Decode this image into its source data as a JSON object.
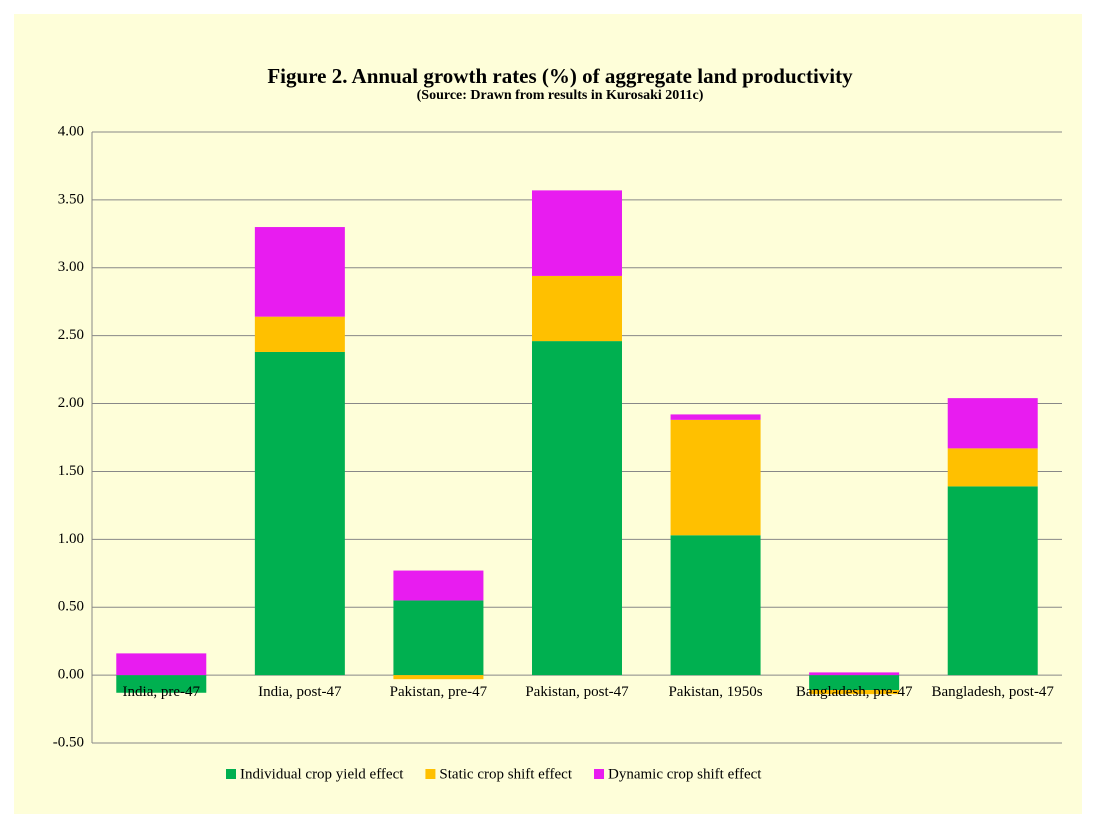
{
  "chart_data": {
    "type": "stacked-bar",
    "title": "Figure 2. Annual growth rates (%) of aggregate land productivity",
    "subtitle": "(Source: Drawn from results in Kurosaki 2011c)",
    "categories": [
      "India, pre-47",
      "India, post-47",
      "Pakistan, pre-47",
      "Pakistan, post-47",
      "Pakistan, 1950s",
      "Bangladesh, pre-47",
      "Bangladesh, post-47"
    ],
    "series": [
      {
        "name": "Individual crop yield effect",
        "color": "#00b050",
        "values": [
          -0.13,
          2.38,
          0.55,
          2.46,
          1.03,
          -0.11,
          1.39
        ]
      },
      {
        "name": "Static crop shift effect",
        "color": "#ffc000",
        "values": [
          0,
          0.26,
          -0.03,
          0.48,
          0.85,
          -0.03,
          0.28
        ]
      },
      {
        "name": "Dynamic crop shift effect",
        "color": "#e81cf0",
        "values": [
          0.16,
          0.66,
          0.22,
          0.63,
          0.04,
          0.02,
          0.37
        ]
      }
    ],
    "ylim": [
      -0.5,
      4.0
    ],
    "yticks": [
      {
        "value": -0.5,
        "label": "-0.50"
      },
      {
        "value": 0,
        "label": "0.00"
      },
      {
        "value": 0.5,
        "label": "0.50"
      },
      {
        "value": 1,
        "label": "1.00"
      },
      {
        "value": 1.5,
        "label": "1.50"
      },
      {
        "value": 2,
        "label": "2.00"
      },
      {
        "value": 2.5,
        "label": "2.50"
      },
      {
        "value": 3,
        "label": "3.00"
      },
      {
        "value": 3.5,
        "label": "3.50"
      },
      {
        "value": 4,
        "label": "4.00"
      }
    ],
    "grid": true,
    "legend": "bottom"
  }
}
